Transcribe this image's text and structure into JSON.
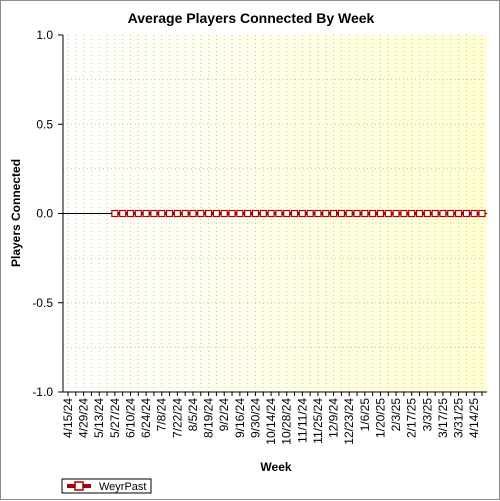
{
  "chart_data": {
    "type": "line",
    "title": "Average Players Connected By Week",
    "xlabel": "Week",
    "ylabel": "Players Connected",
    "ylim": [
      -1.0,
      1.0
    ],
    "yticks": [
      "1.0",
      "0.5",
      "0.0",
      "-0.5",
      "-1.0"
    ],
    "ytick_values": [
      1.0,
      0.5,
      0.0,
      -0.5,
      -1.0
    ],
    "x_tick_labels": [
      "4/15/24",
      "4/29/24",
      "5/13/24",
      "5/27/24",
      "6/10/24",
      "6/24/24",
      "7/8/24",
      "7/22/24",
      "8/5/24",
      "8/19/24",
      "9/2/24",
      "9/16/24",
      "9/30/24",
      "10/14/24",
      "10/28/24",
      "11/11/24",
      "11/25/24",
      "12/9/24",
      "12/23/24",
      "1/6/25",
      "1/20/25",
      "2/3/25",
      "2/17/25",
      "3/3/25",
      "3/17/25",
      "3/31/25",
      "4/14/25"
    ],
    "x": [
      "4/15/24",
      "4/22/24",
      "4/29/24",
      "5/6/24",
      "5/13/24",
      "5/20/24",
      "5/27/24",
      "6/3/24",
      "6/10/24",
      "6/17/24",
      "6/24/24",
      "7/1/24",
      "7/8/24",
      "7/15/24",
      "7/22/24",
      "7/29/24",
      "8/5/24",
      "8/12/24",
      "8/19/24",
      "8/26/24",
      "9/2/24",
      "9/9/24",
      "9/16/24",
      "9/23/24",
      "9/30/24",
      "10/7/24",
      "10/14/24",
      "10/21/24",
      "10/28/24",
      "11/4/24",
      "11/11/24",
      "11/18/24",
      "11/25/24",
      "12/2/24",
      "12/9/24",
      "12/16/24",
      "12/23/24",
      "12/30/24",
      "1/6/25",
      "1/13/25",
      "1/20/25",
      "1/27/25",
      "2/3/25",
      "2/10/25",
      "2/17/25",
      "2/24/25",
      "3/3/25",
      "3/10/25",
      "3/17/25",
      "3/24/25",
      "3/31/25",
      "4/7/25",
      "4/14/25",
      "4/21/25"
    ],
    "series": [
      {
        "name": "WeyrPast",
        "color": "#aa0000",
        "values": [
          null,
          null,
          null,
          null,
          null,
          null,
          0,
          0,
          0,
          0,
          0,
          0,
          0,
          0,
          0,
          0,
          0,
          0,
          0,
          0,
          0,
          0,
          0,
          0,
          0,
          0,
          0,
          0,
          0,
          0,
          0,
          0,
          0,
          0,
          0,
          0,
          0,
          0,
          0,
          0,
          0,
          0,
          0,
          0,
          0,
          0,
          0,
          0,
          0,
          0,
          0,
          0,
          0,
          0
        ]
      }
    ],
    "grid": true,
    "legend_position": "bottom-left",
    "background_gradient": [
      "#ffffff",
      "#ffffd0"
    ]
  }
}
